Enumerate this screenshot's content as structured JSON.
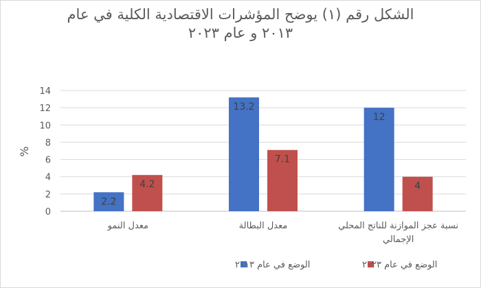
{
  "chart_data": {
    "type": "bar",
    "title_lines": [
      "الشكل رقم (١) يوضح المؤشرات الاقتصادية الكلية في عام",
      "٢٠١٣ و عام ٢٠٢٣"
    ],
    "ylabel": "%",
    "ylim": [
      0,
      14
    ],
    "yticks": [
      0,
      2,
      4,
      6,
      8,
      10,
      12,
      14
    ],
    "grid": true,
    "legend_position": "bottom",
    "categories": [
      [
        "معدل النمو"
      ],
      [
        "معدل البطالة"
      ],
      [
        "نسبة عجز الموازنة للناتج المحلي",
        "الإجمالي"
      ]
    ],
    "series": [
      {
        "name": "الوضع في عام ٢٠١٣",
        "color": "#4472c4",
        "values": [
          2.2,
          13.2,
          12
        ]
      },
      {
        "name": "الوضع في عام ٢٠٢٣",
        "color": "#c0504d",
        "values": [
          4.2,
          7.1,
          4
        ]
      }
    ]
  }
}
